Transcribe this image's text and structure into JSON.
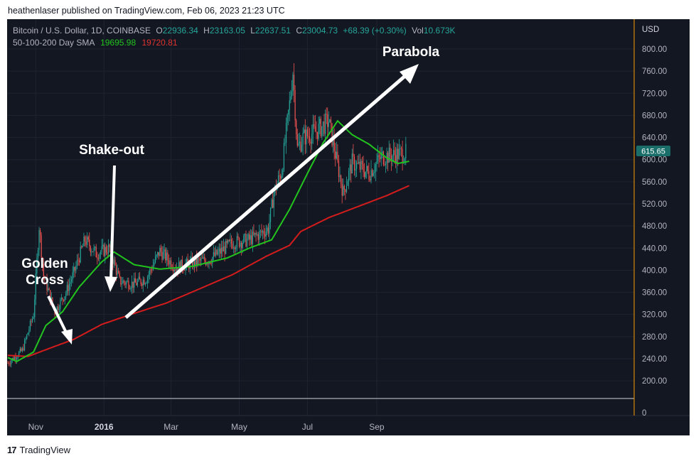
{
  "header": {
    "published": "heathenlaser published on TradingView.com, Feb 06, 2023 21:23 UTC"
  },
  "footer": {
    "brand": "TradingView"
  },
  "legend": {
    "symbol": "Bitcoin / U.S. Dollar, 1D, COINBASE",
    "o_label": "O",
    "o_value": "22936.34",
    "h_label": "H",
    "h_value": "23163.05",
    "l_label": "L",
    "l_value": "22637.51",
    "c_label": "C",
    "c_value": "23004.73",
    "change": "+68.39 (+0.30%)",
    "vol_label": "Vol",
    "vol_value": "10.673K",
    "sma_label": "50-100-200 Day SMA",
    "sma1_value": "19695.98",
    "sma2_value": "19720.81"
  },
  "colors": {
    "background": "#131722",
    "up": "#26a69a",
    "down": "#ef5350",
    "sma_fast": "#22c41e",
    "sma_slow": "#d41c1c",
    "price_tag": "#1a6e6a",
    "annotation": "#ffffff"
  },
  "chart_data": {
    "type": "candlestick",
    "currency_label": "USD",
    "yticks": [
      "800.00",
      "760.00",
      "720.00",
      "680.00",
      "640.00",
      "600.00",
      "560.00",
      "520.00",
      "480.00",
      "440.00",
      "400.00",
      "360.00",
      "320.00",
      "280.00",
      "240.00",
      "200.00"
    ],
    "ylim": [
      200,
      800
    ],
    "xticks": [
      "Nov",
      "2016",
      "Mar",
      "May",
      "Jul",
      "Sep"
    ],
    "current_price": "615.65",
    "volume_axis_label": "0",
    "price_anchors": [
      {
        "date": "2015-10-07",
        "price": 232
      },
      {
        "date": "2015-10-20",
        "price": 255
      },
      {
        "date": "2015-10-30",
        "price": 320
      },
      {
        "date": "2015-11-04",
        "price": 480
      },
      {
        "date": "2015-11-08",
        "price": 390
      },
      {
        "date": "2015-11-18",
        "price": 325
      },
      {
        "date": "2015-11-28",
        "price": 360
      },
      {
        "date": "2015-12-05",
        "price": 395
      },
      {
        "date": "2015-12-15",
        "price": 455
      },
      {
        "date": "2015-12-25",
        "price": 430
      },
      {
        "date": "2016-01-06",
        "price": 440
      },
      {
        "date": "2016-01-15",
        "price": 380
      },
      {
        "date": "2016-01-28",
        "price": 375
      },
      {
        "date": "2016-02-08",
        "price": 385
      },
      {
        "date": "2016-02-20",
        "price": 435
      },
      {
        "date": "2016-03-05",
        "price": 405
      },
      {
        "date": "2016-03-20",
        "price": 413
      },
      {
        "date": "2016-04-05",
        "price": 420
      },
      {
        "date": "2016-04-25",
        "price": 450
      },
      {
        "date": "2016-05-10",
        "price": 455
      },
      {
        "date": "2016-05-27",
        "price": 475
      },
      {
        "date": "2016-06-01",
        "price": 540
      },
      {
        "date": "2016-06-08",
        "price": 580
      },
      {
        "date": "2016-06-15",
        "price": 700
      },
      {
        "date": "2016-06-18",
        "price": 760
      },
      {
        "date": "2016-06-22",
        "price": 620
      },
      {
        "date": "2016-06-27",
        "price": 640
      },
      {
        "date": "2016-07-08",
        "price": 650
      },
      {
        "date": "2016-07-20",
        "price": 670
      },
      {
        "date": "2016-08-02",
        "price": 540
      },
      {
        "date": "2016-08-10",
        "price": 595
      },
      {
        "date": "2016-08-25",
        "price": 575
      },
      {
        "date": "2016-09-05",
        "price": 605
      },
      {
        "date": "2016-09-15",
        "price": 608
      },
      {
        "date": "2016-09-27",
        "price": 612
      }
    ],
    "sma_fast_anchors": [
      {
        "date": "2015-10-07",
        "price": 242
      },
      {
        "date": "2015-10-15",
        "price": 235
      },
      {
        "date": "2015-10-30",
        "price": 252
      },
      {
        "date": "2015-11-10",
        "price": 300
      },
      {
        "date": "2015-11-25",
        "price": 325
      },
      {
        "date": "2015-12-10",
        "price": 370
      },
      {
        "date": "2015-12-30",
        "price": 415
      },
      {
        "date": "2016-01-10",
        "price": 433
      },
      {
        "date": "2016-01-28",
        "price": 410
      },
      {
        "date": "2016-02-20",
        "price": 402
      },
      {
        "date": "2016-03-20",
        "price": 407
      },
      {
        "date": "2016-04-20",
        "price": 422
      },
      {
        "date": "2016-05-10",
        "price": 440
      },
      {
        "date": "2016-05-30",
        "price": 455
      },
      {
        "date": "2016-06-15",
        "price": 510
      },
      {
        "date": "2016-07-01",
        "price": 575
      },
      {
        "date": "2016-07-15",
        "price": 630
      },
      {
        "date": "2016-07-28",
        "price": 670
      },
      {
        "date": "2016-08-10",
        "price": 645
      },
      {
        "date": "2016-08-25",
        "price": 628
      },
      {
        "date": "2016-09-10",
        "price": 603
      },
      {
        "date": "2016-09-20",
        "price": 593
      },
      {
        "date": "2016-09-30",
        "price": 597
      }
    ],
    "sma_slow_anchors": [
      {
        "date": "2015-10-07",
        "price": 246
      },
      {
        "date": "2015-10-25",
        "price": 244
      },
      {
        "date": "2015-11-15",
        "price": 260
      },
      {
        "date": "2015-12-05",
        "price": 275
      },
      {
        "date": "2015-12-30",
        "price": 302
      },
      {
        "date": "2016-01-25",
        "price": 320
      },
      {
        "date": "2016-02-25",
        "price": 340
      },
      {
        "date": "2016-03-25",
        "price": 365
      },
      {
        "date": "2016-04-25",
        "price": 392
      },
      {
        "date": "2016-05-25",
        "price": 425
      },
      {
        "date": "2016-06-15",
        "price": 445
      },
      {
        "date": "2016-06-25",
        "price": 470
      },
      {
        "date": "2016-07-20",
        "price": 495
      },
      {
        "date": "2016-08-15",
        "price": 515
      },
      {
        "date": "2016-09-10",
        "price": 535
      },
      {
        "date": "2016-09-30",
        "price": 553
      }
    ],
    "annotations": [
      "Golden\nCross",
      "Shake-out",
      "Parabola"
    ]
  }
}
